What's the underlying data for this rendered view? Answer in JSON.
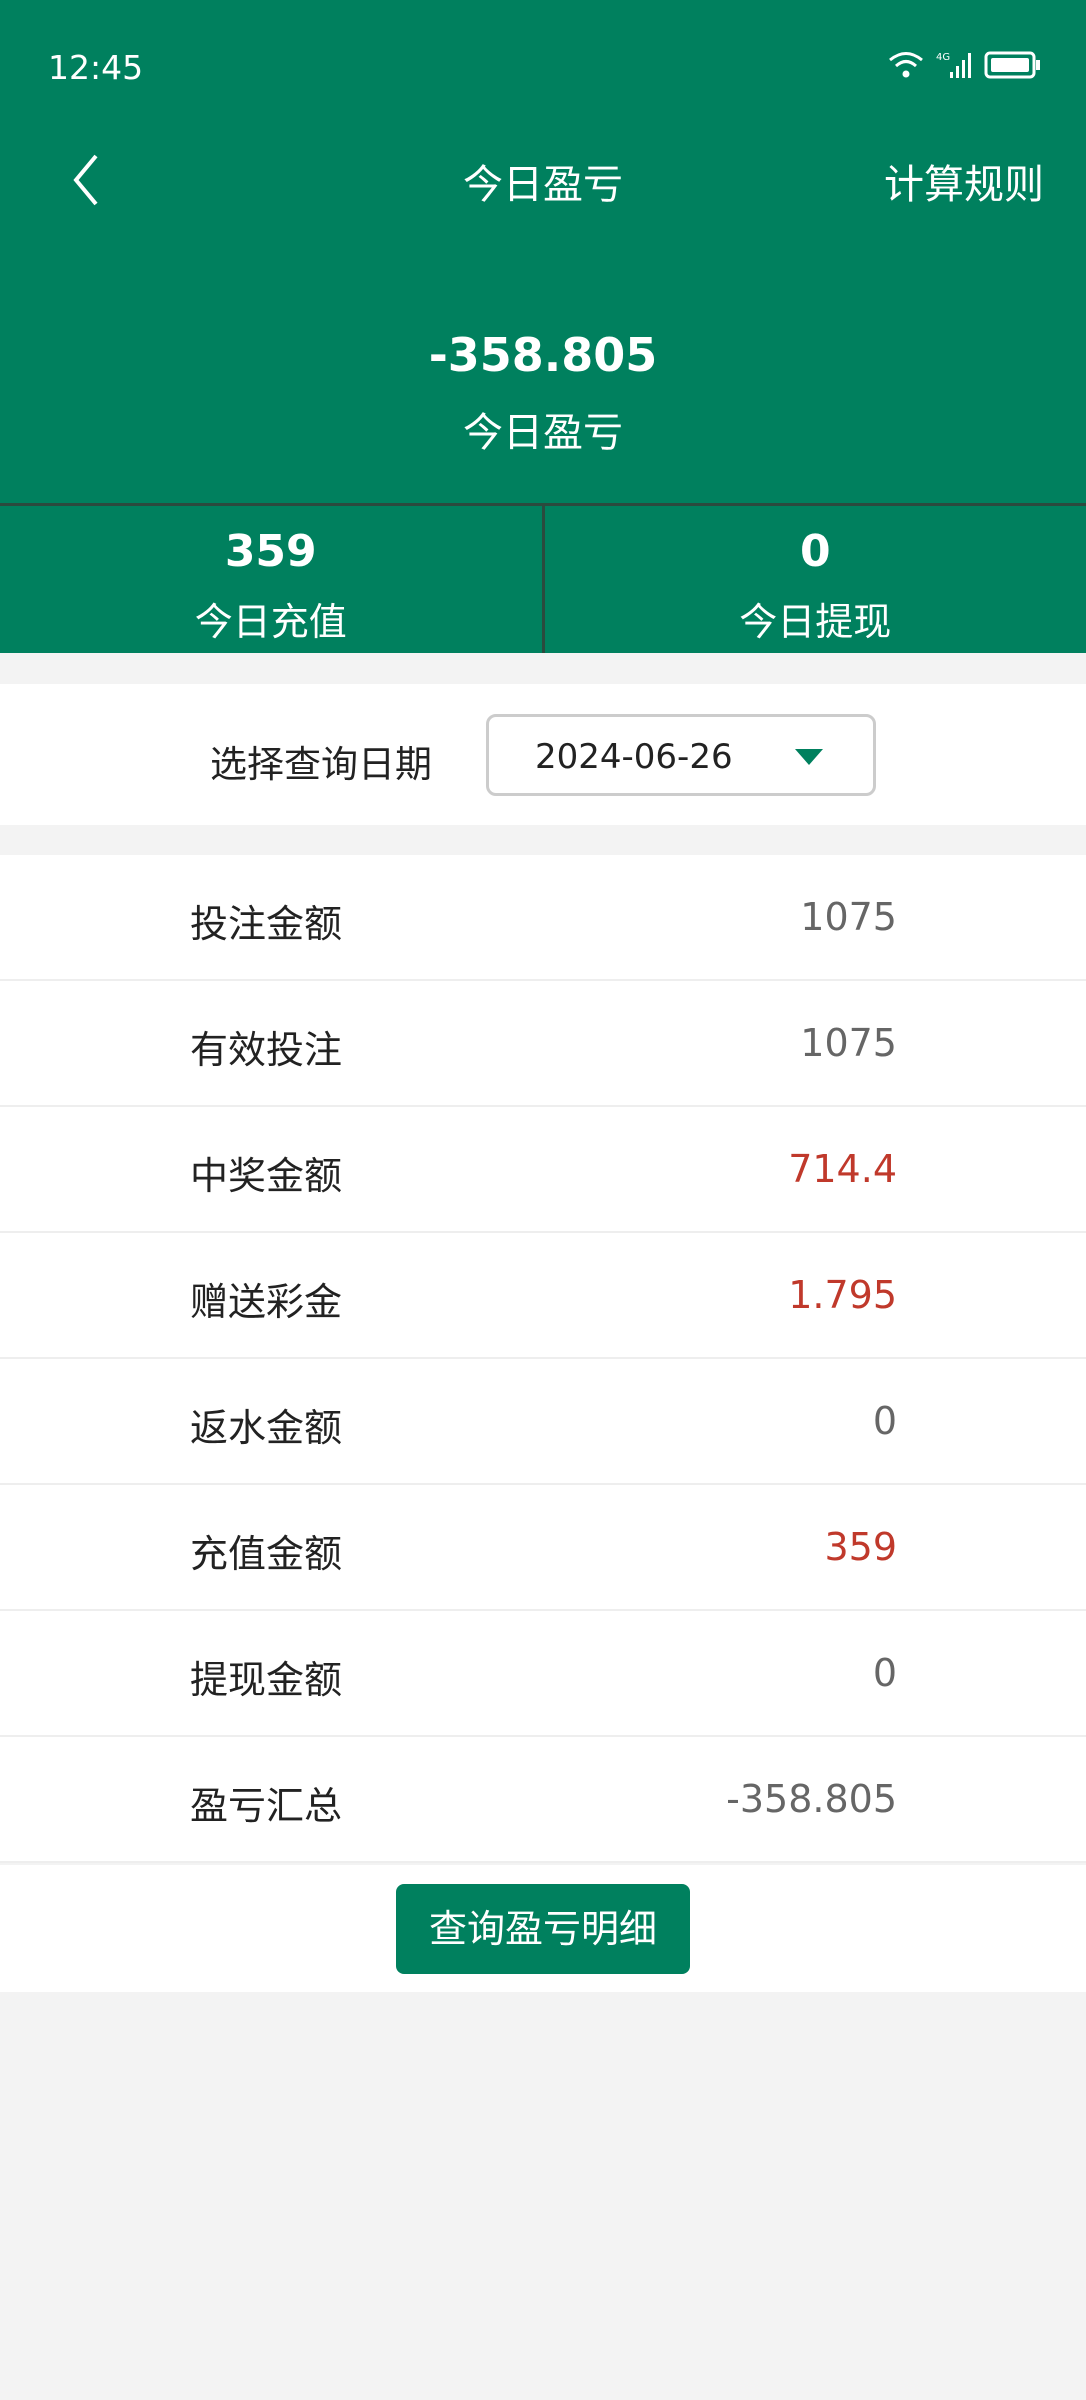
{
  "status_bar": {
    "time": "12:45",
    "icons": [
      "wifi-icon",
      "signal-4g-icon",
      "battery-icon"
    ],
    "network": "4G"
  },
  "header": {
    "title": "今日盈亏",
    "rules_label": "计算规则",
    "amount": "-358.805",
    "amount_label": "今日盈亏"
  },
  "stats": [
    {
      "value": "359",
      "label": "今日充值"
    },
    {
      "value": "0",
      "label": "今日提现"
    }
  ],
  "date_filter": {
    "label": "选择查询日期",
    "value": "2024-06-26"
  },
  "rows": [
    {
      "label": "投注金额",
      "value": "1075",
      "highlight": false
    },
    {
      "label": "有效投注",
      "value": "1075",
      "highlight": false
    },
    {
      "label": "中奖金额",
      "value": "714.4",
      "highlight": true
    },
    {
      "label": "赠送彩金",
      "value": "1.795",
      "highlight": true
    },
    {
      "label": "返水金额",
      "value": "0",
      "highlight": false
    },
    {
      "label": "充值金额",
      "value": "359",
      "highlight": true
    },
    {
      "label": "提现金额",
      "value": "0",
      "highlight": false
    },
    {
      "label": "盈亏汇总",
      "value": "-358.805",
      "highlight": false
    }
  ],
  "detail_button": "查询盈亏明细",
  "colors": {
    "brand": "#00805e",
    "highlight": "#c0392b"
  }
}
